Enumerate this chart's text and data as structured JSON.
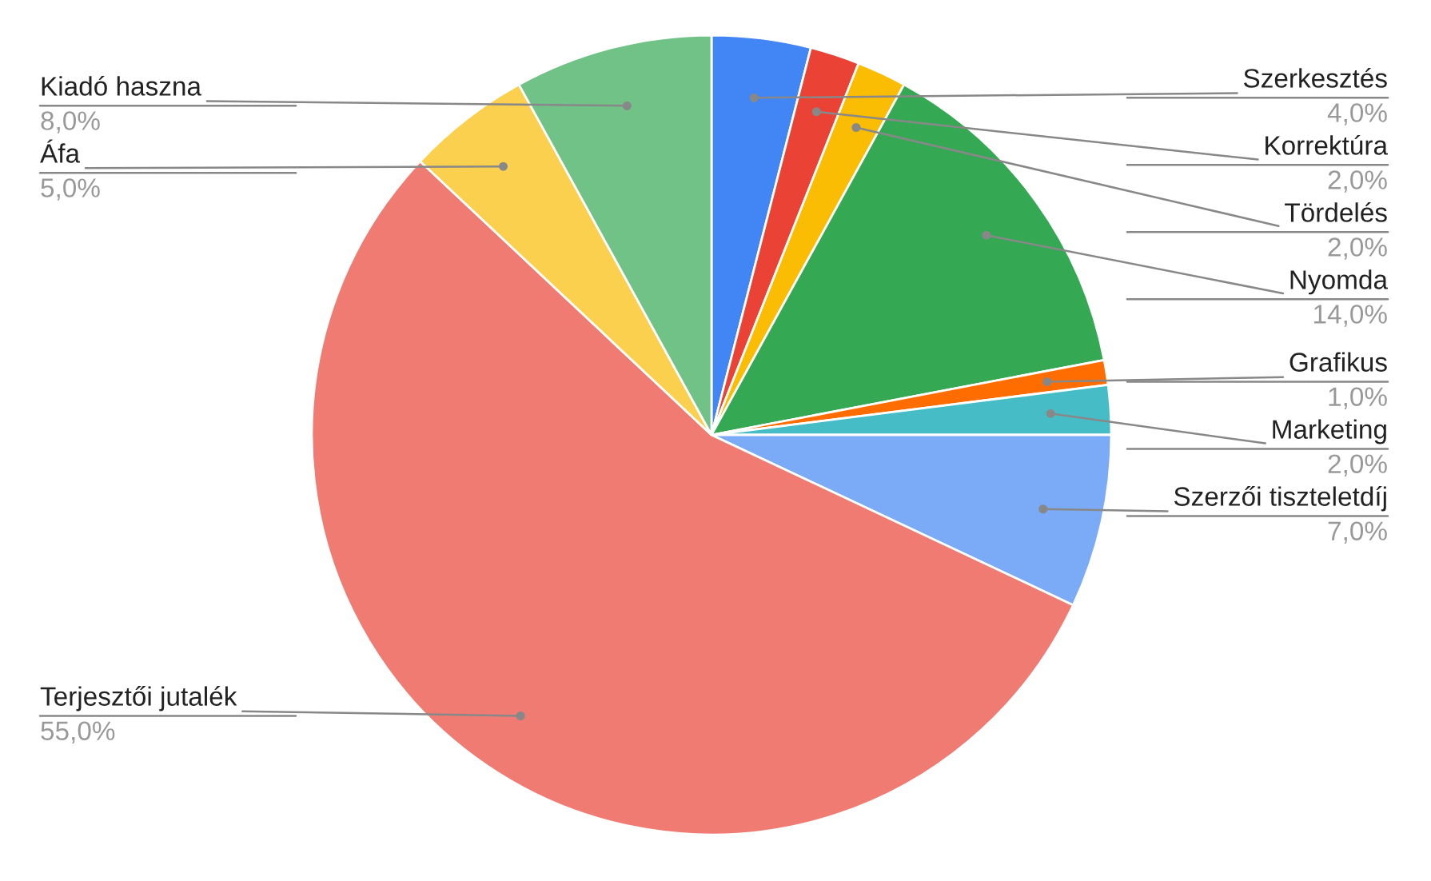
{
  "chart_data": {
    "type": "pie",
    "categories": [
      "Szerkesztés",
      "Korrektúra",
      "Tördelés",
      "Nyomda",
      "Grafikus",
      "Marketing",
      "Szerzői tiszteletdíj",
      "Terjesztői jutalék",
      "Áfa",
      "Kiadó haszna"
    ],
    "values": [
      4,
      2,
      2,
      14,
      1,
      2,
      7,
      55,
      5,
      8
    ],
    "colors": [
      "#4285f4",
      "#ea4335",
      "#fbbc04",
      "#34a853",
      "#ff6d01",
      "#46bdc6",
      "#7baaf7",
      "#f07b72",
      "#fcd04f",
      "#71c287"
    ],
    "value_labels": [
      "4,0%",
      "2,0%",
      "2,0%",
      "14,0%",
      "1,0%",
      "2,0%",
      "7,0%",
      "55,0%",
      "5,0%",
      "8,0%"
    ],
    "legend": false
  }
}
